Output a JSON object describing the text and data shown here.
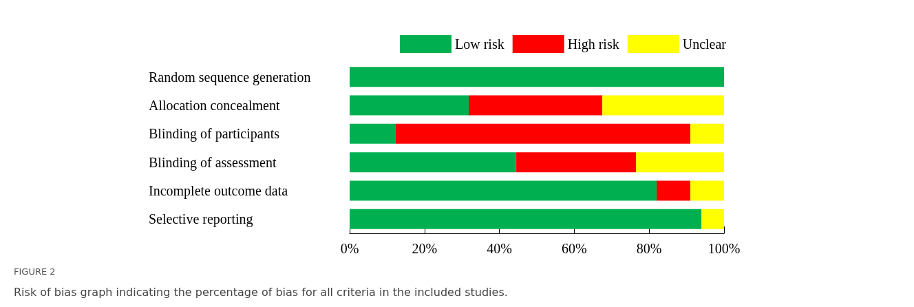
{
  "chart_data": {
    "type": "bar",
    "orientation": "horizontal",
    "stacked": true,
    "categories": [
      "Random sequence generation",
      "Allocation concealment",
      "Blinding of participants",
      "Blinding of assessment",
      "Incomplete outcome data",
      "Selective reporting"
    ],
    "series": [
      {
        "name": "Low risk",
        "color": "#00b050",
        "values": [
          100,
          31.8,
          12.3,
          44.5,
          82,
          94
        ]
      },
      {
        "name": "High risk",
        "color": "#ff0000",
        "values": [
          0,
          35.7,
          78.7,
          32,
          9,
          0
        ]
      },
      {
        "name": "Unclear",
        "color": "#ffff00",
        "values": [
          0,
          32.5,
          9,
          23.5,
          9,
          6
        ]
      }
    ],
    "xlim": [
      0,
      100
    ],
    "xticks": [
      {
        "value": 0,
        "label": "0%"
      },
      {
        "value": 20,
        "label": "20%"
      },
      {
        "value": 40,
        "label": "40%"
      },
      {
        "value": 60,
        "label": "60%"
      },
      {
        "value": 80,
        "label": "80%"
      },
      {
        "value": 100,
        "label": "100%"
      }
    ],
    "grid": false,
    "legend": "top right",
    "annotations": [
      "FIGURE 2",
      "Risk of bias graph indicating the percentage of bias for all criteria in the included studies."
    ]
  }
}
